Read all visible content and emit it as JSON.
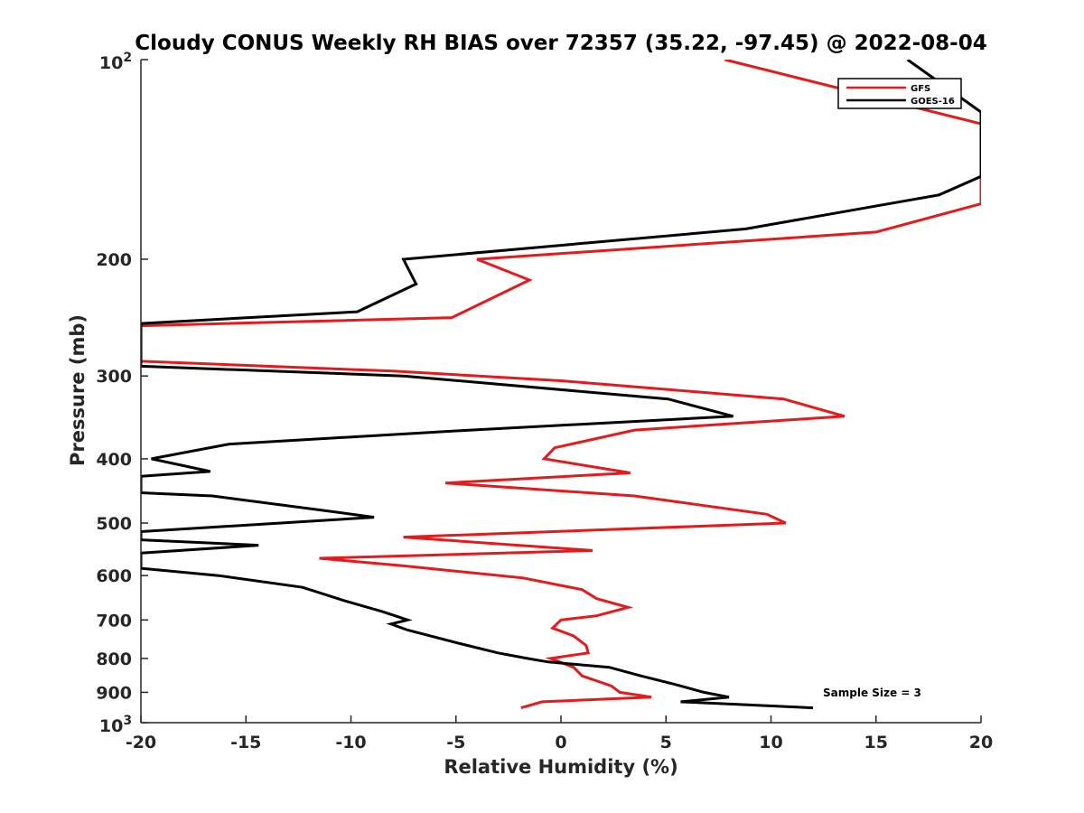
{
  "chart_data": {
    "type": "line",
    "title": "Cloudy CONUS Weekly RH BIAS over 72357 (35.22, -97.45) @ 2022-08-04",
    "xlabel": "Relative Humidity (%)",
    "ylabel": "Pressure (mb)",
    "xlim": [
      -20,
      20
    ],
    "ylim": [
      100,
      1000
    ],
    "y_scale": "log",
    "y_reversed": true,
    "grid": false,
    "legend_position": "top-right",
    "x_ticks": [
      "-20",
      "-15",
      "-10",
      "-5",
      "0",
      "5",
      "10",
      "15",
      "20"
    ],
    "y_tick_labels": [
      "200",
      "300",
      "400",
      "500",
      "600",
      "700",
      "800",
      "900"
    ],
    "y_tick_min_label": {
      "base": "10",
      "exp": "2"
    },
    "y_tick_max_label": {
      "base": "10",
      "exp": "3"
    },
    "annotation": "Sample Size = 3",
    "series": [
      {
        "name": "GFS",
        "color": "#e41a1c",
        "points": [
          [
            7.8,
            100
          ],
          [
            20,
            125
          ],
          [
            20,
            165
          ],
          [
            15,
            182
          ],
          [
            -4,
            200
          ],
          [
            -1.5,
            215
          ],
          [
            -5.2,
            245
          ],
          [
            -20,
            252
          ],
          [
            -20,
            285
          ],
          [
            -8,
            295
          ],
          [
            0,
            305
          ],
          [
            10.6,
            325
          ],
          [
            13.5,
            345
          ],
          [
            3.5,
            362
          ],
          [
            -0.3,
            385
          ],
          [
            -0.8,
            400
          ],
          [
            3.3,
            420
          ],
          [
            -5.5,
            435
          ],
          [
            3.5,
            455
          ],
          [
            9.8,
            485
          ],
          [
            10.7,
            500
          ],
          [
            -7.5,
            525
          ],
          [
            1.5,
            550
          ],
          [
            -11.5,
            565
          ],
          [
            -7.5,
            580
          ],
          [
            -1.8,
            605
          ],
          [
            1,
            630
          ],
          [
            1.7,
            650
          ],
          [
            3.2,
            670
          ],
          [
            1.7,
            690
          ],
          [
            0,
            700
          ],
          [
            -0.4,
            720
          ],
          [
            0.6,
            740
          ],
          [
            1.2,
            765
          ],
          [
            1.3,
            785
          ],
          [
            -0.5,
            800
          ],
          [
            0.6,
            825
          ],
          [
            1,
            850
          ],
          [
            2.4,
            880
          ],
          [
            2.8,
            900
          ],
          [
            4.3,
            915
          ],
          [
            -0.9,
            930
          ],
          [
            -1.9,
            950
          ]
        ]
      },
      {
        "name": "GOES-16",
        "color": "#000000",
        "points": [
          [
            16.5,
            100
          ],
          [
            20,
            120
          ],
          [
            20,
            150
          ],
          [
            18,
            160
          ],
          [
            8.8,
            180
          ],
          [
            -7.5,
            200
          ],
          [
            -6.9,
            218
          ],
          [
            -9.7,
            240
          ],
          [
            -20,
            250
          ],
          [
            -20,
            290
          ],
          [
            -7.5,
            300
          ],
          [
            5.1,
            325
          ],
          [
            8.2,
            345
          ],
          [
            -4.3,
            362
          ],
          [
            -15.8,
            380
          ],
          [
            -19.5,
            400
          ],
          [
            -16.7,
            418
          ],
          [
            -20,
            425
          ],
          [
            -20,
            450
          ],
          [
            -16.6,
            455
          ],
          [
            -11,
            480
          ],
          [
            -8.9,
            490
          ],
          [
            -20,
            515
          ],
          [
            -20,
            530
          ],
          [
            -14.4,
            540
          ],
          [
            -20,
            555
          ],
          [
            -20,
            585
          ],
          [
            -16.3,
            600
          ],
          [
            -12.3,
            625
          ],
          [
            -10.3,
            655
          ],
          [
            -8.5,
            680
          ],
          [
            -7.3,
            700
          ],
          [
            -8.1,
            710
          ],
          [
            -7.3,
            725
          ],
          [
            -4.8,
            760
          ],
          [
            -3,
            785
          ],
          [
            -1.6,
            800
          ],
          [
            -0.6,
            810
          ],
          [
            2.3,
            825
          ],
          [
            3.8,
            850
          ],
          [
            5.4,
            875
          ],
          [
            6.8,
            900
          ],
          [
            8,
            915
          ],
          [
            5.7,
            930
          ],
          [
            12,
            950
          ]
        ]
      }
    ]
  }
}
